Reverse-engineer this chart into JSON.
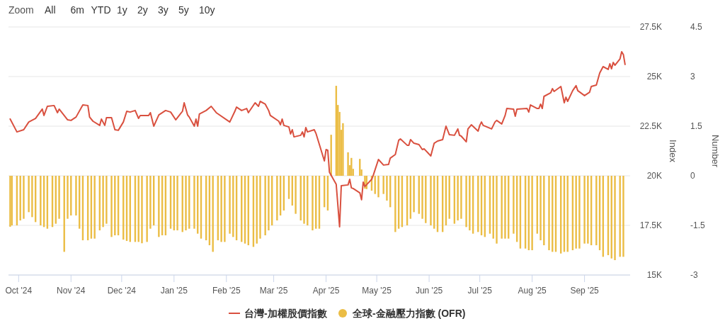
{
  "chart_data": {
    "type": "line",
    "ylabel": "Index",
    "y2label": "Number",
    "grid": "y",
    "legend": "bottom",
    "annotations": [
      "Zoom",
      "All",
      "6m",
      "YTD",
      "1y",
      "2y",
      "3y",
      "5y",
      "10y"
    ],
    "xlim": [
      "2024-09-25",
      "2025-09-28"
    ],
    "xticks": [
      {
        "value": "2024-10-01",
        "label": "Oct '24"
      },
      {
        "value": "2024-11-01",
        "label": "Nov '24"
      },
      {
        "value": "2024-12-01",
        "label": "Dec '24"
      },
      {
        "value": "2025-01-01",
        "label": "Jan '25"
      },
      {
        "value": "2025-02-01",
        "label": "Feb '25"
      },
      {
        "value": "2025-03-01",
        "label": "Mar '25"
      },
      {
        "value": "2025-04-01",
        "label": "Apr '25"
      },
      {
        "value": "2025-05-01",
        "label": "May '25"
      },
      {
        "value": "2025-06-01",
        "label": "Jun '25"
      },
      {
        "value": "2025-07-01",
        "label": "Jul '25"
      },
      {
        "value": "2025-08-01",
        "label": "Aug '25"
      },
      {
        "value": "2025-09-01",
        "label": "Sep '25"
      }
    ],
    "ylim": [
      15000,
      27500
    ],
    "yticks": [
      {
        "value": 15000,
        "label": "15K"
      },
      {
        "value": 17500,
        "label": "17.5K"
      },
      {
        "value": 20000,
        "label": "20K"
      },
      {
        "value": 22500,
        "label": "22.5K"
      },
      {
        "value": 25000,
        "label": "25K"
      },
      {
        "value": 27500,
        "label": "27.5K"
      }
    ],
    "y2lim": [
      -3,
      4.5
    ],
    "y2ticks": [
      -3,
      -1.5,
      0,
      1.5,
      3,
      4.5
    ],
    "series": [
      {
        "name": "全球-金融壓力指數 (OFR)",
        "type": "bar",
        "axis": "y2",
        "color": "#ebbd45",
        "x": [
          "2024-09-26",
          "2024-09-27",
          "2024-09-30",
          "2024-10-02",
          "2024-10-04",
          "2024-10-07",
          "2024-10-09",
          "2024-10-11",
          "2024-10-14",
          "2024-10-16",
          "2024-10-18",
          "2024-10-21",
          "2024-10-23",
          "2024-10-25",
          "2024-10-28",
          "2024-10-30",
          "2024-11-01",
          "2024-11-04",
          "2024-11-06",
          "2024-11-08",
          "2024-11-11",
          "2024-11-13",
          "2024-11-15",
          "2024-11-18",
          "2024-11-20",
          "2024-11-22",
          "2024-11-25",
          "2024-11-27",
          "2024-11-29",
          "2024-12-02",
          "2024-12-04",
          "2024-12-06",
          "2024-12-09",
          "2024-12-11",
          "2024-12-13",
          "2024-12-16",
          "2024-12-18",
          "2024-12-20",
          "2024-12-23",
          "2024-12-25",
          "2024-12-27",
          "2024-12-30",
          "2025-01-01",
          "2025-01-03",
          "2025-01-06",
          "2025-01-08",
          "2025-01-10",
          "2025-01-13",
          "2025-01-15",
          "2025-01-17",
          "2025-01-20",
          "2025-01-22",
          "2025-01-24",
          "2025-01-27",
          "2025-01-29",
          "2025-01-31",
          "2025-02-03",
          "2025-02-05",
          "2025-02-07",
          "2025-02-10",
          "2025-02-12",
          "2025-02-14",
          "2025-02-17",
          "2025-02-19",
          "2025-02-21",
          "2025-02-24",
          "2025-02-26",
          "2025-02-28",
          "2025-03-03",
          "2025-03-05",
          "2025-03-07",
          "2025-03-10",
          "2025-03-12",
          "2025-03-14",
          "2025-03-17",
          "2025-03-19",
          "2025-03-21",
          "2025-03-24",
          "2025-03-26",
          "2025-03-28",
          "2025-03-31",
          "2025-04-02",
          "2025-04-04",
          "2025-04-07",
          "2025-04-08",
          "2025-04-09",
          "2025-04-10",
          "2025-04-11",
          "2025-04-14",
          "2025-04-15",
          "2025-04-16",
          "2025-04-17",
          "2025-04-21",
          "2025-04-22",
          "2025-04-24",
          "2025-04-25",
          "2025-04-28",
          "2025-04-30",
          "2025-05-02",
          "2025-05-05",
          "2025-05-07",
          "2025-05-09",
          "2025-05-12",
          "2025-05-14",
          "2025-05-16",
          "2025-05-19",
          "2025-05-21",
          "2025-05-23",
          "2025-05-26",
          "2025-05-28",
          "2025-05-30",
          "2025-06-02",
          "2025-06-04",
          "2025-06-06",
          "2025-06-09",
          "2025-06-11",
          "2025-06-13",
          "2025-06-16",
          "2025-06-18",
          "2025-06-20",
          "2025-06-23",
          "2025-06-25",
          "2025-06-27",
          "2025-06-30",
          "2025-07-02",
          "2025-07-04",
          "2025-07-07",
          "2025-07-09",
          "2025-07-11",
          "2025-07-14",
          "2025-07-16",
          "2025-07-18",
          "2025-07-21",
          "2025-07-23",
          "2025-07-25",
          "2025-07-28",
          "2025-07-30",
          "2025-08-01",
          "2025-08-04",
          "2025-08-06",
          "2025-08-08",
          "2025-08-11",
          "2025-08-13",
          "2025-08-15",
          "2025-08-18",
          "2025-08-20",
          "2025-08-22",
          "2025-08-25",
          "2025-08-27",
          "2025-08-29",
          "2025-09-01",
          "2025-09-03",
          "2025-09-05",
          "2025-09-08",
          "2025-09-10",
          "2025-09-12",
          "2025-09-15",
          "2025-09-17",
          "2025-09-19",
          "2025-09-22",
          "2025-09-24"
        ],
        "values": [
          -1.54,
          -1.5,
          -1.5,
          -1.35,
          -1.3,
          -1.1,
          -1.25,
          -1.4,
          -1.5,
          -1.55,
          -1.6,
          -1.55,
          -1.45,
          -1.3,
          -2.3,
          -1.3,
          -1.2,
          -1.2,
          -1.6,
          -1.95,
          -1.95,
          -1.9,
          -1.9,
          -1.65,
          -1.55,
          -1.45,
          -1.85,
          -1.8,
          -1.8,
          -1.93,
          -1.97,
          -2.0,
          -2.0,
          -2.0,
          -2.04,
          -2.0,
          -1.6,
          -1.5,
          -1.85,
          -1.8,
          -1.8,
          -1.6,
          -1.65,
          -1.65,
          -1.7,
          -1.65,
          -1.6,
          -1.6,
          -1.75,
          -1.9,
          -1.95,
          -2.1,
          -2.3,
          -1.95,
          -2.0,
          -2.0,
          -1.75,
          -1.85,
          -1.95,
          -2.0,
          -2.05,
          -2.1,
          -2.15,
          -2.05,
          -1.9,
          -1.8,
          -1.65,
          -1.5,
          -1.35,
          -1.2,
          -1.05,
          -0.7,
          -0.9,
          -1.15,
          -1.35,
          -1.45,
          -1.5,
          -1.65,
          -1.6,
          -1.6,
          -0.95,
          -1.05,
          1.24,
          2.72,
          2.14,
          1.93,
          1.39,
          1.59,
          0.71,
          0.32,
          0.54,
          0.21,
          0.51,
          0.19,
          -0.39,
          -0.4,
          -0.45,
          -0.55,
          -0.65,
          -0.55,
          -0.75,
          -0.95,
          -1.7,
          -1.6,
          -1.55,
          -1.5,
          -1.3,
          -1.1,
          -1.15,
          -1.3,
          -1.43,
          -1.5,
          -1.6,
          -1.7,
          -1.7,
          -1.5,
          -1.3,
          -1.45,
          -1.35,
          -1.3,
          -1.55,
          -1.65,
          -1.75,
          -1.7,
          -1.8,
          -1.85,
          -1.75,
          -1.9,
          -2.05,
          -1.9,
          -1.9,
          -1.9,
          -1.75,
          -2.0,
          -2.2,
          -2.2,
          -2.25,
          -2.25,
          -1.75,
          -1.95,
          -2.1,
          -2.25,
          -2.3,
          -2.3,
          -2.35,
          -2.3,
          -2.3,
          -2.25,
          -2.2,
          -2.2,
          -2.05,
          -2.05,
          -2.1,
          -2.1,
          -2.25,
          -2.45,
          -2.4,
          -2.5,
          -2.55,
          -2.45,
          -2.45
        ]
      },
      {
        "name": "台灣-加權股價指數",
        "color": "#d9503f",
        "x": [
          "2024-09-26",
          "2024-09-30",
          "2024-10-04",
          "2024-10-07",
          "2024-10-11",
          "2024-10-15",
          "2024-10-16",
          "2024-10-18",
          "2024-10-22",
          "2024-10-24",
          "2024-10-25",
          "2024-10-30",
          "2024-11-01",
          "2024-11-04",
          "2024-11-08",
          "2024-11-11",
          "2024-11-12",
          "2024-11-14",
          "2024-11-18",
          "2024-11-19",
          "2024-11-21",
          "2024-11-22",
          "2024-11-25",
          "2024-11-27",
          "2024-11-29",
          "2024-12-02",
          "2024-12-04",
          "2024-12-06",
          "2024-12-09",
          "2024-12-11",
          "2024-12-12",
          "2024-12-17",
          "2024-12-18",
          "2024-12-20",
          "2024-12-23",
          "2024-12-27",
          "2024-12-30",
          "2025-01-02",
          "2025-01-06",
          "2025-01-07",
          "2025-01-09",
          "2025-01-10",
          "2025-01-13",
          "2025-01-14",
          "2025-01-15",
          "2025-01-16",
          "2025-01-20",
          "2025-01-23",
          "2025-01-26",
          "2025-02-03",
          "2025-02-06",
          "2025-02-07",
          "2025-02-10",
          "2025-02-13",
          "2025-02-14",
          "2025-02-18",
          "2025-02-20",
          "2025-02-21",
          "2025-02-24",
          "2025-02-26",
          "2025-02-27",
          "2025-03-04",
          "2025-03-05",
          "2025-03-06",
          "2025-03-07",
          "2025-03-10",
          "2025-03-11",
          "2025-03-12",
          "2025-03-13",
          "2025-03-17",
          "2025-03-18",
          "2025-03-19",
          "2025-03-20",
          "2025-03-21",
          "2025-03-25",
          "2025-03-26",
          "2025-03-31",
          "2025-04-01",
          "2025-04-02",
          "2025-04-03",
          "2025-04-07",
          "2025-04-09",
          "2025-04-10",
          "2025-04-14",
          "2025-04-15",
          "2025-04-16",
          "2025-04-17",
          "2025-04-21",
          "2025-04-22",
          "2025-04-23",
          "2025-04-24",
          "2025-04-28",
          "2025-04-29",
          "2025-05-02",
          "2025-05-05",
          "2025-05-08",
          "2025-05-09",
          "2025-05-12",
          "2025-05-14",
          "2025-05-15",
          "2025-05-19",
          "2025-05-20",
          "2025-05-21",
          "2025-05-23",
          "2025-05-26",
          "2025-05-28",
          "2025-05-29",
          "2025-06-02",
          "2025-06-04",
          "2025-06-06",
          "2025-06-09",
          "2025-06-11",
          "2025-06-13",
          "2025-06-16",
          "2025-06-18",
          "2025-06-19",
          "2025-06-20",
          "2025-06-23",
          "2025-06-24",
          "2025-06-26",
          "2025-06-30",
          "2025-07-01",
          "2025-07-02",
          "2025-07-03",
          "2025-07-08",
          "2025-07-10",
          "2025-07-11",
          "2025-07-14",
          "2025-07-16",
          "2025-07-17",
          "2025-07-21",
          "2025-07-22",
          "2025-07-23",
          "2025-07-29",
          "2025-07-30",
          "2025-07-31",
          "2025-08-04",
          "2025-08-05",
          "2025-08-06",
          "2025-08-07",
          "2025-08-08",
          "2025-08-12",
          "2025-08-13",
          "2025-08-14",
          "2025-08-18",
          "2025-08-20",
          "2025-08-21",
          "2025-08-22",
          "2025-08-25",
          "2025-08-27",
          "2025-08-28",
          "2025-09-01",
          "2025-09-04",
          "2025-09-05",
          "2025-09-08",
          "2025-09-10",
          "2025-09-12",
          "2025-09-15",
          "2025-09-16",
          "2025-09-17",
          "2025-09-18",
          "2025-09-19",
          "2025-09-22",
          "2025-09-23",
          "2025-09-24",
          "2025-09-25"
        ],
        "values": [
          22860,
          22210,
          22320,
          22710,
          22890,
          23360,
          23040,
          23500,
          23540,
          23180,
          23360,
          22820,
          22790,
          22960,
          23570,
          23540,
          22960,
          22750,
          22540,
          22860,
          22540,
          22930,
          22930,
          22320,
          22290,
          22710,
          23250,
          23210,
          23290,
          22890,
          23040,
          23040,
          23180,
          22500,
          23070,
          23290,
          23210,
          22820,
          23250,
          23680,
          23070,
          22960,
          22500,
          22860,
          22500,
          23110,
          23290,
          23500,
          23180,
          22710,
          23250,
          23460,
          23290,
          23390,
          23180,
          23680,
          23500,
          23750,
          23610,
          23290,
          23040,
          22750,
          22570,
          22860,
          22540,
          22460,
          22110,
          22320,
          21960,
          22040,
          22210,
          21960,
          22430,
          22210,
          22320,
          22140,
          20750,
          21320,
          21290,
          20180,
          19570,
          17430,
          19500,
          19540,
          19820,
          19390,
          19360,
          19140,
          18790,
          19680,
          19460,
          19820,
          20040,
          20820,
          20540,
          20570,
          20890,
          21070,
          21790,
          21860,
          21540,
          21540,
          21820,
          21640,
          21570,
          21320,
          21360,
          21000,
          21640,
          21750,
          21820,
          22500,
          22070,
          22040,
          22360,
          22040,
          22000,
          21710,
          22360,
          22570,
          22250,
          22540,
          22710,
          22540,
          22360,
          22710,
          22790,
          22610,
          23040,
          23390,
          23360,
          23000,
          23360,
          23390,
          23210,
          23570,
          23390,
          23390,
          23610,
          23390,
          24000,
          24180,
          24390,
          24250,
          24500,
          23680,
          23960,
          23750,
          24290,
          24540,
          24290,
          24040,
          24210,
          24500,
          24570,
          25180,
          25500,
          25360,
          25640,
          25390,
          25710,
          25570,
          25890,
          26250,
          26110,
          25610
        ]
      }
    ]
  }
}
